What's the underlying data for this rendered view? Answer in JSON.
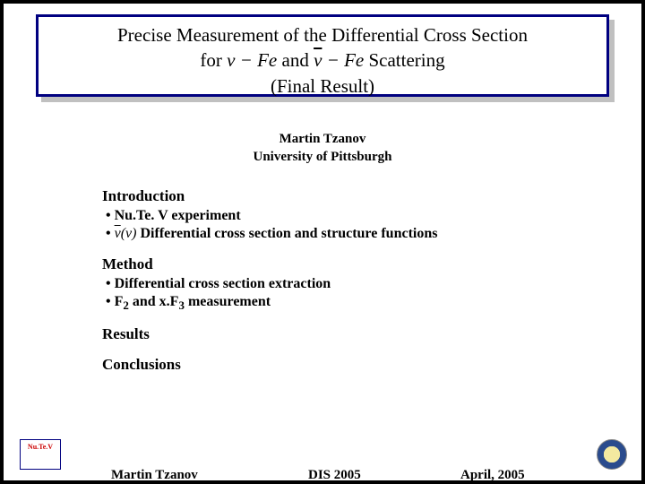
{
  "title": {
    "line1_pre": "Precise Measurement of the Differential Cross Section",
    "line2_pre": "for ",
    "formula1": "ν − Fe",
    "line2_mid": " and ",
    "formula2_over": "ν",
    "formula2_rest": " − Fe",
    "line2_post": " Scattering",
    "line3": "(Final Result)"
  },
  "author": {
    "name": "Martin Tzanov",
    "affiliation": "University of Pittsburgh"
  },
  "sections": {
    "intro": "Introduction",
    "intro_b1": "• Nu.Te. V experiment",
    "intro_b2_pre": "• ",
    "intro_b2_formula_over": "ν",
    "intro_b2_formula_paren": "(ν)",
    "intro_b2_post": " Differential cross section and structure functions",
    "method": "Method",
    "method_b1": "• Differential cross section extraction",
    "method_b2_pre": "• F",
    "method_b2_sub1": "2",
    "method_b2_mid": " and x.F",
    "method_b2_sub2": "3",
    "method_b2_post": " measurement",
    "results": "Results",
    "conclusions": "Conclusions"
  },
  "footer": {
    "author": "Martin Tzanov",
    "conference": "DIS 2005",
    "date": "April, 2005"
  },
  "logo_left": {
    "main": "Nu.Te.V"
  }
}
